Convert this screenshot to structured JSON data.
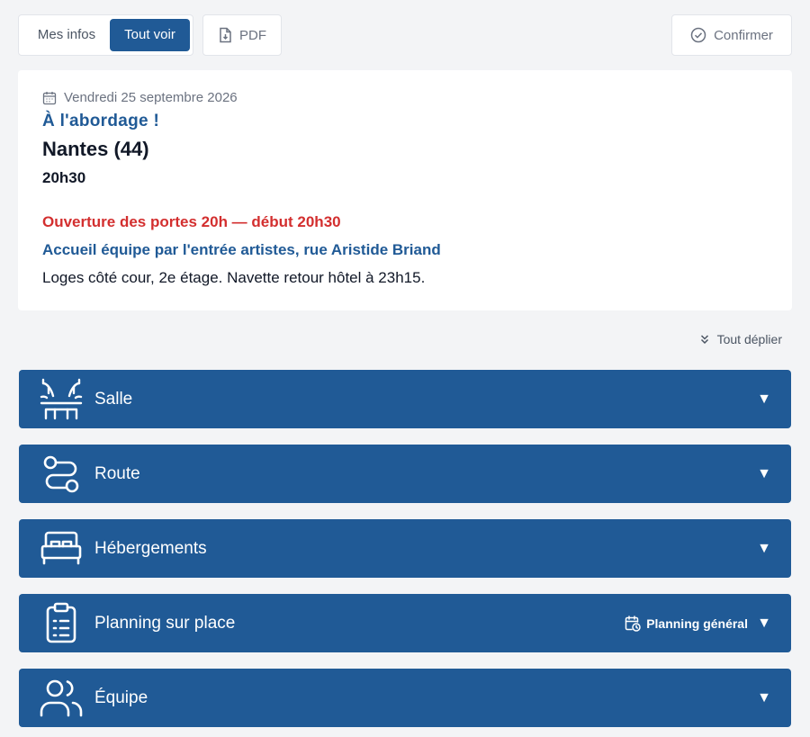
{
  "toolbar": {
    "mes_infos": "Mes infos",
    "tout_voir": "Tout voir",
    "pdf": "PDF",
    "confirmer": "Confirmer"
  },
  "event": {
    "date": "Vendredi 25 septembre 2026",
    "title": "À l'abordage !",
    "city": "Nantes (44)",
    "time": "20h30",
    "note_red": "Ouverture des portes 20h — début 20h30",
    "note_blue": "Accueil équipe par l'entrée artistes, rue Aristide Briand",
    "note_plain": "Loges côté cour, 2e étage. Navette retour hôtel à 23h15."
  },
  "expand_all": "Tout déplier",
  "sections": [
    {
      "label": "Salle",
      "icon": "theater-icon"
    },
    {
      "label": "Route",
      "icon": "route-icon"
    },
    {
      "label": "Hébergements",
      "icon": "bed-icon"
    },
    {
      "label": "Planning sur place",
      "icon": "clipboard-list-icon",
      "extra": "Planning général"
    },
    {
      "label": "Équipe",
      "icon": "users-icon"
    }
  ],
  "colors": {
    "primary": "#205a96",
    "alert": "#d32f2f",
    "background": "#f3f4f6"
  }
}
